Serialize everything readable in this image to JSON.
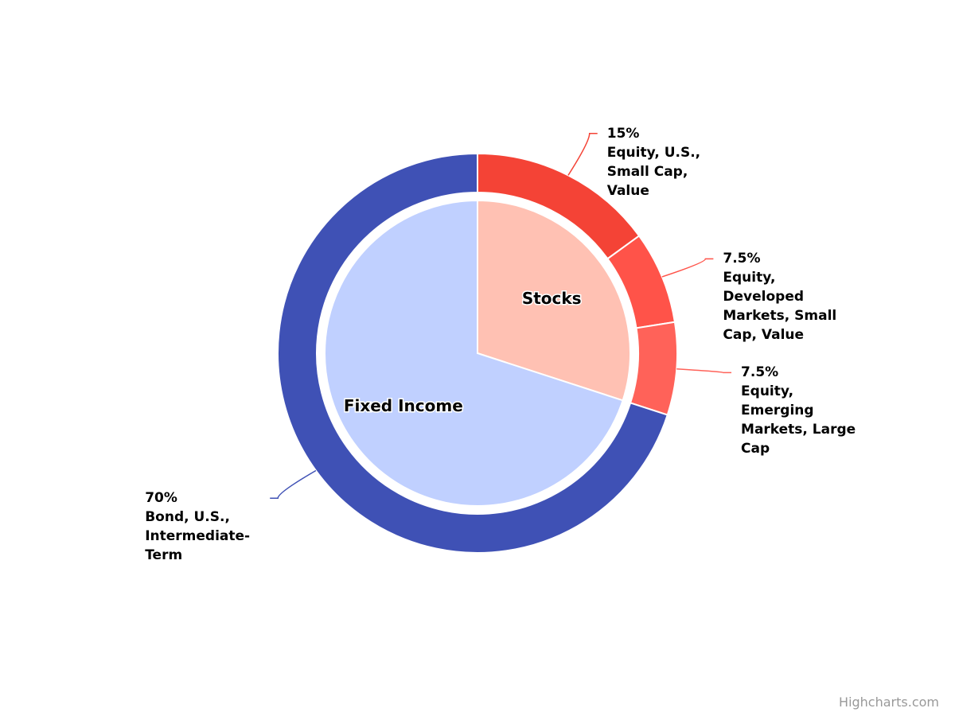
{
  "chart_data": {
    "type": "pie",
    "credits": "Highcharts.com",
    "series": [
      {
        "categories": [
          "Stocks",
          "Fixed Income"
        ],
        "colors": [
          "#ffc1b3",
          "#c0d0ff"
        ],
        "values": [
          30,
          70
        ]
      },
      {
        "categories": [
          "Equity, U.S., Small Cap, Value",
          "Equity, Developed Markets, Small Cap, Value",
          "Equity, Emerging Markets, Large Cap",
          "Bond, U.S., Intermediate-Term"
        ],
        "colors": [
          "#f44336",
          "#ff5349",
          "#ff6259",
          "#3f51b5"
        ],
        "values": [
          15,
          7.5,
          7.5,
          70
        ],
        "value_labels": [
          "15%",
          "7.5%",
          "7.5%",
          "70%"
        ]
      }
    ]
  }
}
